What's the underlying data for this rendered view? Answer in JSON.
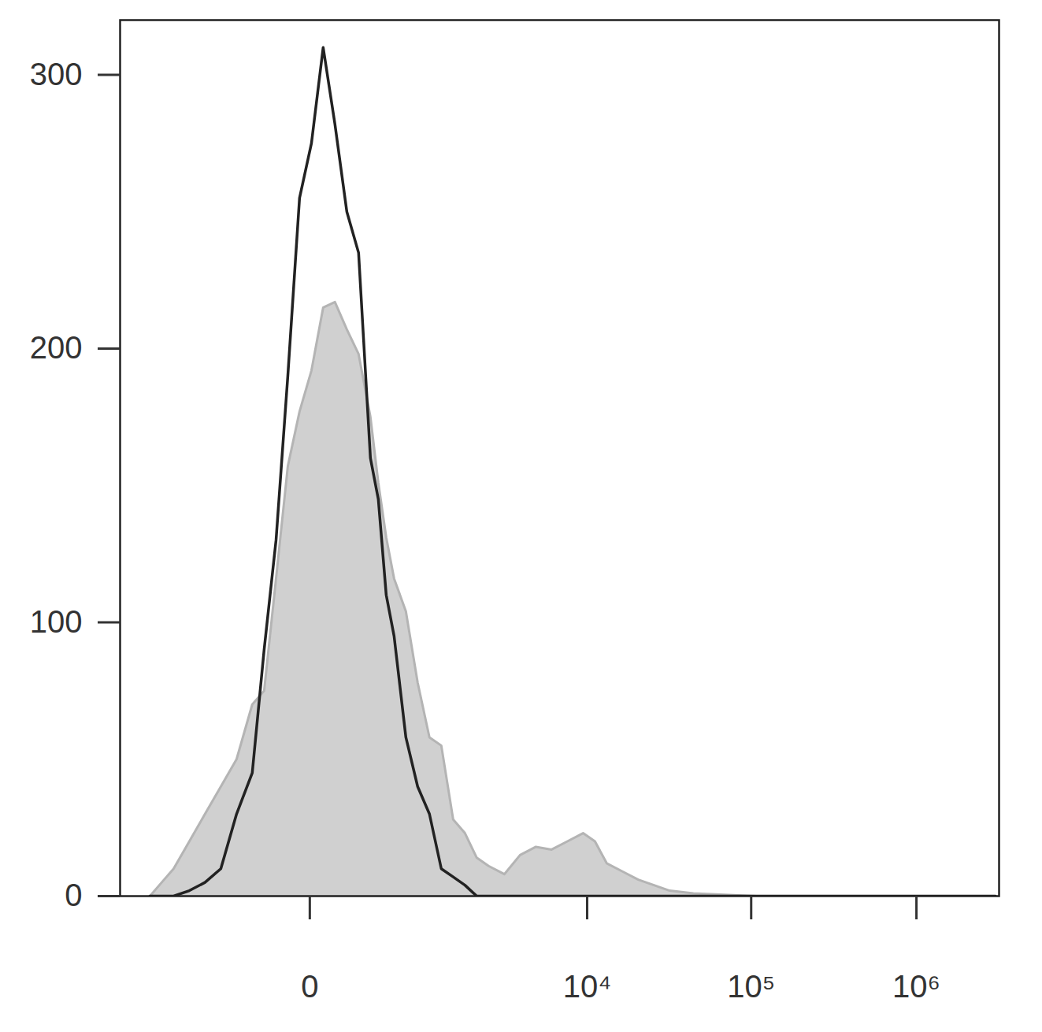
{
  "chart_data": {
    "type": "line",
    "log": "x",
    "x": [
      -1776,
      -1475,
      -1217,
      -935,
      -710,
      -527,
      -381,
      -264,
      -191,
      -129,
      -77,
      -33,
      5,
      44,
      90,
      145,
      209,
      285,
      343,
      408,
      480,
      604,
      750,
      922,
      1126,
      1367,
      1649,
      1982,
      2376,
      3010,
      3800,
      4790,
      6010,
      7540,
      9440,
      11170,
      13200,
      16500,
      20600,
      25700,
      32000,
      44600,
      69200,
      107500,
      3000000
    ],
    "series": [
      {
        "type": "area",
        "color": "#d0d0d0",
        "values": [
          0,
          5,
          10,
          20,
          30,
          40,
          50,
          70,
          75,
          116,
          157,
          177,
          192,
          215,
          217,
          207,
          198,
          175,
          151,
          131,
          116,
          104,
          78,
          58,
          55,
          28,
          23,
          14,
          11,
          8,
          15,
          18,
          17,
          20,
          23,
          20,
          12,
          9,
          6,
          4,
          2,
          1,
          0.5,
          0,
          0
        ]
      },
      {
        "type": "line",
        "color": "#222222",
        "values": [
          0,
          0,
          0,
          2,
          5,
          10,
          30,
          45,
          90,
          130,
          190,
          255,
          275,
          310,
          282,
          250,
          235,
          160,
          145,
          110,
          95,
          58,
          40,
          30,
          10,
          7,
          4,
          0,
          0,
          0,
          0,
          0,
          0,
          0,
          0,
          0,
          0,
          0,
          0,
          0,
          0,
          0,
          0,
          0,
          0
        ]
      }
    ],
    "xlim": [
      -2800,
      3160000
    ],
    "xticks": [
      0,
      {
        "value": 10000,
        "label": "10⁴"
      },
      {
        "value": 100000,
        "label": "10⁵"
      },
      {
        "value": 1000000,
        "label": "10⁶"
      }
    ],
    "ylim": [
      0,
      320
    ],
    "yticks": [
      0,
      100,
      200,
      300
    ]
  }
}
